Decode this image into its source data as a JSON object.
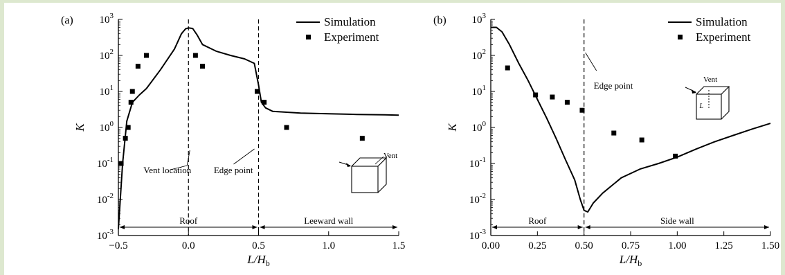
{
  "colors": {
    "frame": "#dde8cf",
    "background": "#ffffff",
    "ink": "#000000"
  },
  "chart_data": [
    {
      "panel_label": "(a)",
      "type": "line",
      "xlabel": "L/H",
      "xlabel_sub": "b",
      "ylabel": "K",
      "xlim": [
        -0.5,
        1.5
      ],
      "ylim": [
        0.001,
        1000
      ],
      "yscale": "log",
      "x_ticks": [
        -0.5,
        0.0,
        0.5,
        1.0,
        1.5
      ],
      "x_tick_labels": [
        "−0.5",
        "0.0",
        "0.5",
        "1.0",
        "1.5"
      ],
      "y_tick_exponents": [
        -3,
        -2,
        -1,
        0,
        1,
        2,
        3
      ],
      "y_tick_base": "10",
      "legend": {
        "position": "top-right",
        "line_label": "Simulation",
        "marker_label": "Experiment"
      },
      "series": [
        {
          "name": "Simulation",
          "style": "line",
          "x": [
            -0.5,
            -0.47,
            -0.44,
            -0.4,
            -0.35,
            -0.3,
            -0.2,
            -0.1,
            -0.05,
            -0.02,
            0.0,
            0.03,
            0.06,
            0.1,
            0.2,
            0.3,
            0.4,
            0.47,
            0.5,
            0.52,
            0.55,
            0.6,
            0.8,
            1.0,
            1.2,
            1.4,
            1.5
          ],
          "y": [
            0.0015,
            0.1,
            1.5,
            5,
            8,
            12,
            40,
            150,
            400,
            550,
            580,
            560,
            380,
            200,
            130,
            100,
            80,
            60,
            15,
            5,
            3.5,
            2.8,
            2.5,
            2.4,
            2.3,
            2.25,
            2.2
          ]
        },
        {
          "name": "Experiment",
          "style": "marker",
          "x": [
            -0.48,
            -0.45,
            -0.43,
            -0.41,
            -0.4,
            -0.36,
            -0.3,
            0.05,
            0.1,
            0.49,
            0.54,
            0.7,
            1.24
          ],
          "y": [
            0.1,
            0.5,
            1,
            5,
            10,
            50,
            100,
            100,
            50,
            10,
            5,
            1,
            0.5
          ]
        }
      ],
      "vlines": [
        0.0,
        0.5
      ],
      "annotations": [
        {
          "text": "Vent location",
          "x": 0.0,
          "y": 0.05
        },
        {
          "text": "Edge point",
          "x": 0.5,
          "y": 0.05
        },
        {
          "text": "Vent",
          "x": 1.3,
          "y": 0.15
        }
      ],
      "regions": [
        {
          "label": "Roof",
          "from": -0.5,
          "to": 0.5
        },
        {
          "label": "Leeward wall",
          "from": 0.5,
          "to": 1.5
        }
      ]
    },
    {
      "panel_label": "(b)",
      "type": "line",
      "xlabel": "L/H",
      "xlabel_sub": "b",
      "ylabel": "K",
      "xlim": [
        0.0,
        1.5
      ],
      "ylim": [
        0.001,
        1000
      ],
      "yscale": "log",
      "x_ticks": [
        0.0,
        0.25,
        0.5,
        0.75,
        1.0,
        1.25,
        1.5
      ],
      "x_tick_labels": [
        "0.00",
        "0.25",
        "0.50",
        "0.75",
        "1.00",
        "1.25",
        "1.50"
      ],
      "y_tick_exponents": [
        -3,
        -2,
        -1,
        0,
        1,
        2,
        3
      ],
      "y_tick_base": "10",
      "legend": {
        "position": "top-right",
        "line_label": "Simulation",
        "marker_label": "Experiment"
      },
      "series": [
        {
          "name": "Simulation",
          "style": "line",
          "x": [
            0.0,
            0.03,
            0.06,
            0.1,
            0.15,
            0.2,
            0.25,
            0.3,
            0.35,
            0.4,
            0.45,
            0.48,
            0.5,
            0.52,
            0.55,
            0.6,
            0.7,
            0.8,
            0.9,
            1.0,
            1.1,
            1.2,
            1.3,
            1.4,
            1.5
          ],
          "y": [
            600,
            600,
            450,
            200,
            60,
            20,
            6,
            1.8,
            0.5,
            0.13,
            0.035,
            0.01,
            0.005,
            0.0045,
            0.008,
            0.015,
            0.04,
            0.07,
            0.1,
            0.15,
            0.25,
            0.4,
            0.6,
            0.9,
            1.3
          ]
        },
        {
          "name": "Experiment",
          "style": "marker",
          "x": [
            0.09,
            0.24,
            0.33,
            0.41,
            0.49,
            0.66,
            0.81,
            0.99
          ],
          "y": [
            45,
            8,
            7,
            5,
            3,
            0.7,
            0.45,
            0.16
          ]
        }
      ],
      "vlines": [
        0.5
      ],
      "annotations": [
        {
          "text": "Edge point",
          "x": 0.52,
          "y": 6
        },
        {
          "text": "Vent",
          "x": 1.2,
          "y": 40
        }
      ],
      "regions": [
        {
          "label": "Roof",
          "from": 0.0,
          "to": 0.5
        },
        {
          "label": "Side wall",
          "from": 0.5,
          "to": 1.5
        }
      ],
      "inset_label": "L"
    }
  ]
}
